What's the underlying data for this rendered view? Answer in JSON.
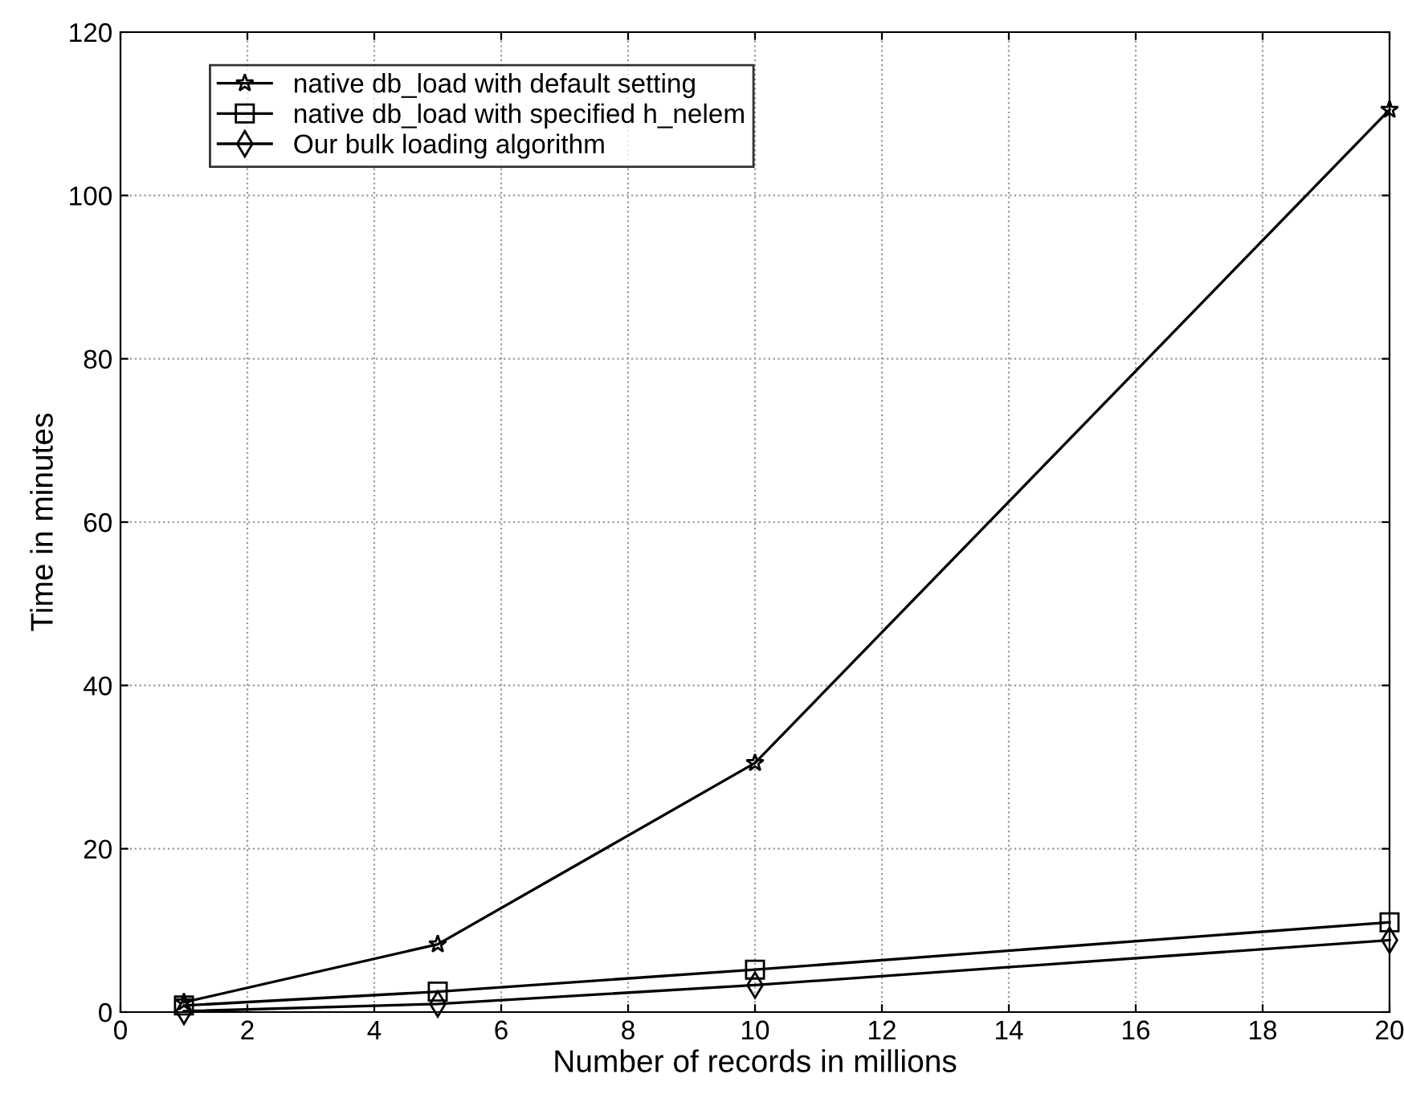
{
  "chart_data": {
    "type": "line",
    "xlabel": "Number of records in millions",
    "ylabel": "Time in minutes",
    "x": [
      1,
      5,
      10,
      20
    ],
    "series": [
      {
        "name": "native db_load with default setting",
        "color": "#000000",
        "marker": "star",
        "values": [
          1.2,
          8.3,
          30.5,
          110.5
        ]
      },
      {
        "name": "native db_load with specified h_nelem",
        "color": "#000000",
        "marker": "square",
        "values": [
          0.8,
          2.5,
          5.2,
          11
        ]
      },
      {
        "name": "Our bulk loading algorithm",
        "color": "#000000",
        "marker": "diamond",
        "values": [
          0.1,
          1.0,
          3.3,
          8.8
        ]
      }
    ],
    "xlim": [
      0,
      20
    ],
    "ylim": [
      0,
      120
    ],
    "xticks": [
      0,
      2,
      4,
      6,
      8,
      10,
      12,
      14,
      16,
      18,
      20
    ],
    "yticks": [
      0,
      20,
      40,
      60,
      80,
      100,
      120
    ],
    "grid": true,
    "legend": "top left",
    "line_style": "solid"
  }
}
